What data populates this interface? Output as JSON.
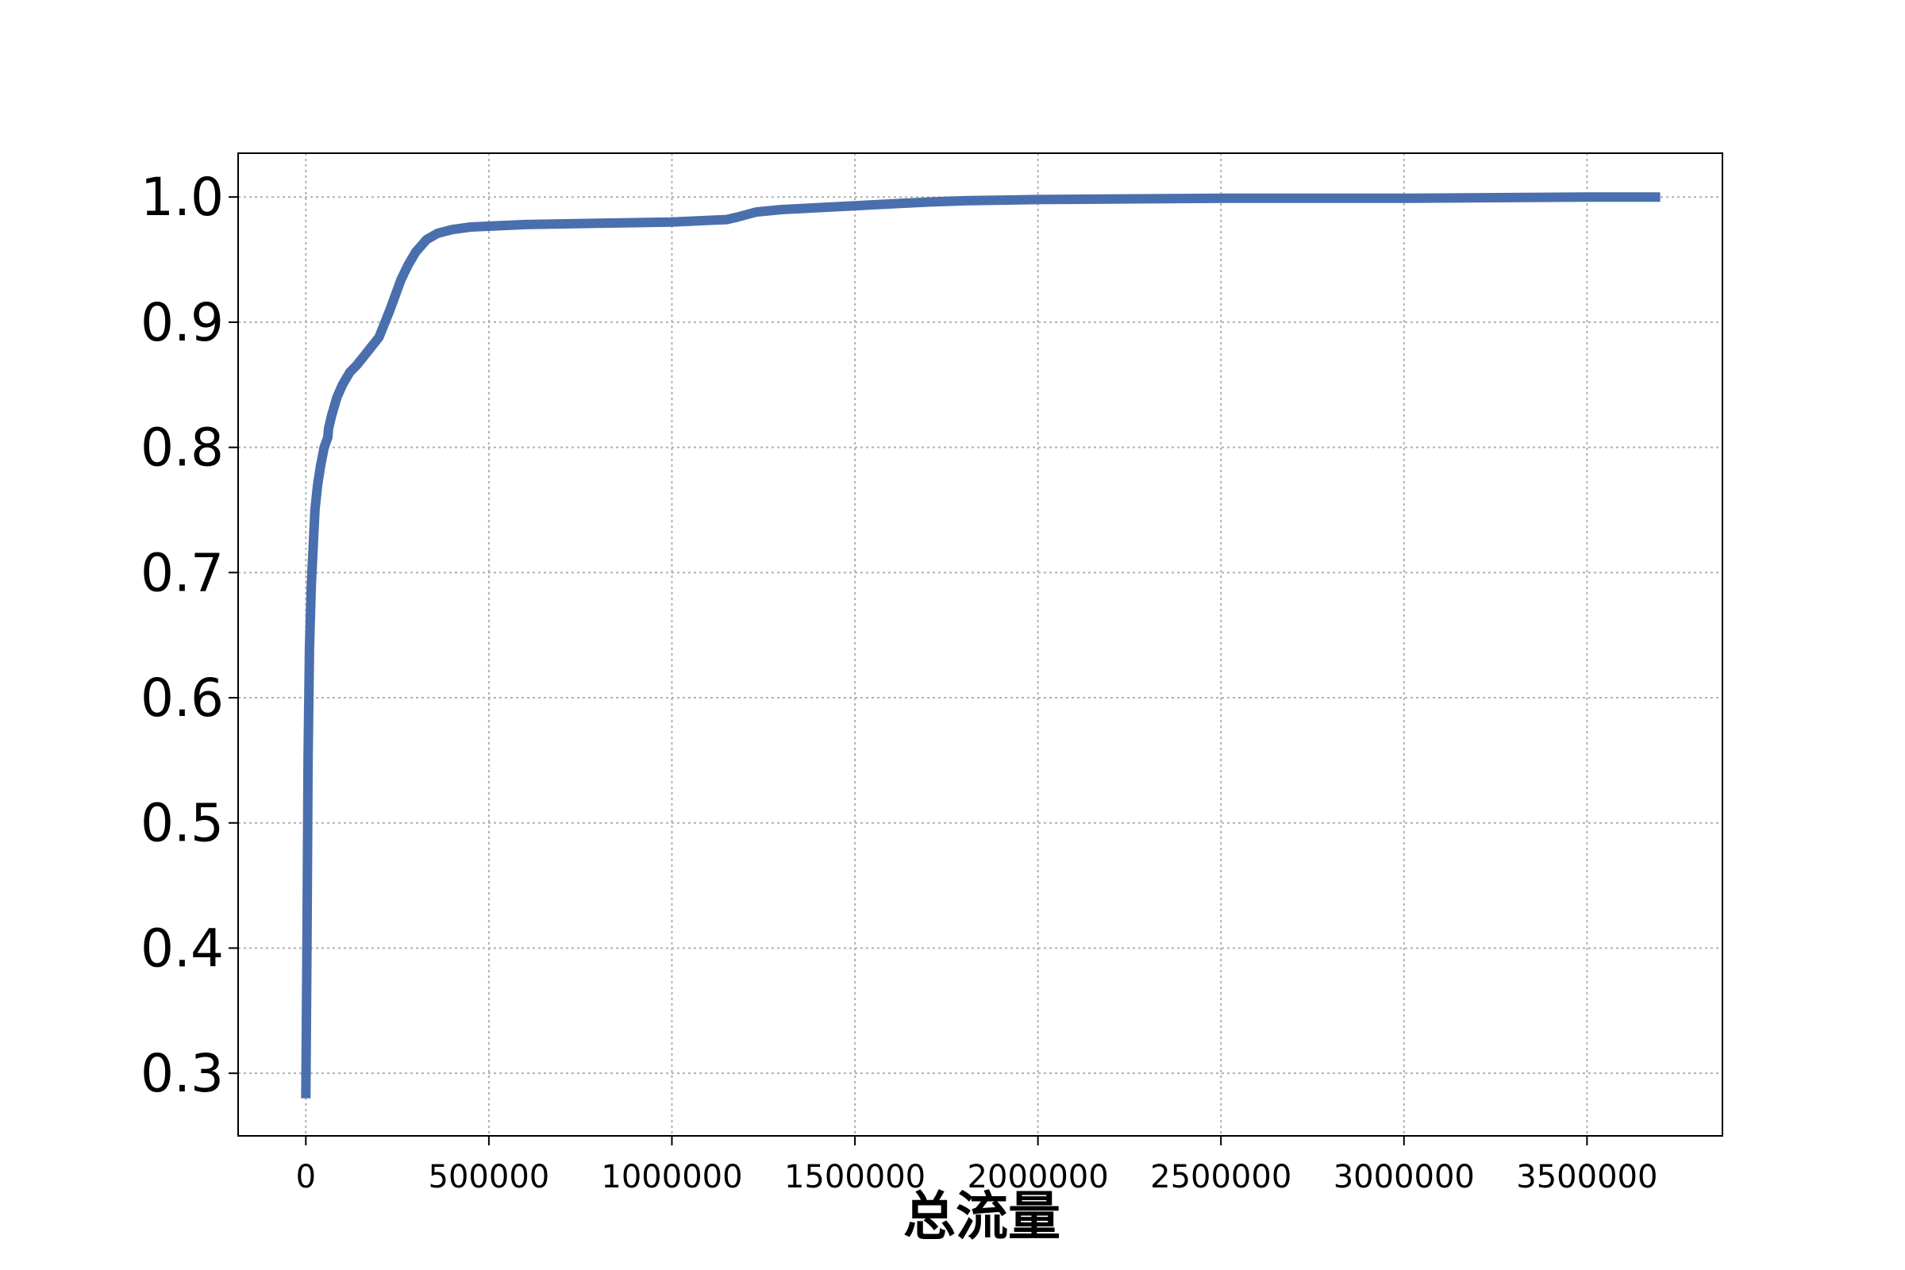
{
  "chart_data": {
    "type": "line",
    "title": "",
    "xlabel": "总流量",
    "ylabel": "",
    "xlim": [
      -185000,
      3870000
    ],
    "ylim": [
      0.25,
      1.035
    ],
    "grid": true,
    "line_color": "#4a6fae",
    "x_ticks": [
      0,
      500000,
      1000000,
      1500000,
      2000000,
      2500000,
      3000000,
      3500000
    ],
    "x_tick_labels": [
      "0",
      "500000",
      "1000000",
      "1500000",
      "2000000",
      "2500000",
      "3000000",
      "3500000"
    ],
    "y_ticks": [
      0.3,
      0.4,
      0.5,
      0.6,
      0.7,
      0.8,
      0.9,
      1.0
    ],
    "y_tick_labels": [
      "0.3",
      "0.4",
      "0.5",
      "0.6",
      "0.7",
      "0.8",
      "0.9",
      "1.0"
    ],
    "series": [
      {
        "x": [
          0,
          3000,
          6000,
          10000,
          15000,
          20000,
          25000,
          32000,
          40000,
          50000,
          60000,
          62000,
          70000,
          85000,
          100000,
          120000,
          140000,
          170000,
          200000,
          230000,
          260000,
          280000,
          300000,
          330000,
          360000,
          400000,
          450000,
          600000,
          800000,
          1000000,
          1150000,
          1180000,
          1230000,
          1300000,
          1500000,
          1700000,
          1800000,
          2000000,
          2500000,
          3000000,
          3500000,
          3700000
        ],
        "y": [
          0.28,
          0.4,
          0.55,
          0.64,
          0.69,
          0.72,
          0.75,
          0.77,
          0.785,
          0.8,
          0.808,
          0.815,
          0.825,
          0.84,
          0.85,
          0.86,
          0.866,
          0.877,
          0.888,
          0.91,
          0.934,
          0.946,
          0.956,
          0.966,
          0.971,
          0.974,
          0.976,
          0.978,
          0.979,
          0.98,
          0.982,
          0.984,
          0.988,
          0.99,
          0.993,
          0.996,
          0.997,
          0.998,
          0.999,
          0.999,
          1.0,
          1.0
        ]
      }
    ]
  }
}
